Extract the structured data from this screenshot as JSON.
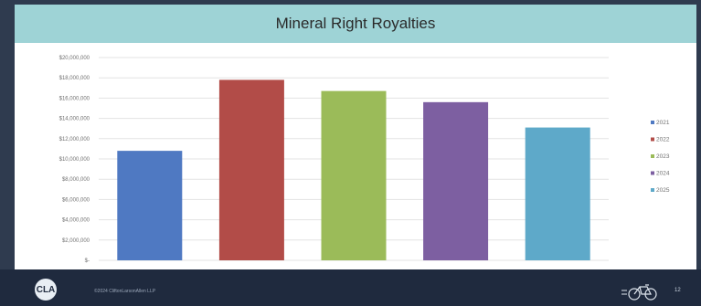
{
  "slide": {
    "title": "Mineral Right Royalties",
    "footer_text": "©2024 CliftonLarsonAllen LLP",
    "page_number": "12",
    "logo_text": "CLA"
  },
  "chart_data": {
    "type": "bar",
    "title": "",
    "xlabel": "",
    "ylabel": "",
    "y_tick_labels": [
      "$-",
      "$2,000,000",
      "$4,000,000",
      "$6,000,000",
      "$8,000,000",
      "$10,000,000",
      "$12,000,000",
      "$14,000,000",
      "$16,000,000",
      "$18,000,000",
      "$20,000,000"
    ],
    "y_ticks": [
      0,
      2000000,
      4000000,
      6000000,
      8000000,
      10000000,
      12000000,
      14000000,
      16000000,
      18000000,
      20000000
    ],
    "ylim": [
      0,
      20000000
    ],
    "grid": true,
    "legend_position": "right",
    "series": [
      {
        "name": "2021",
        "value": 10800000,
        "color": "#4f79c2"
      },
      {
        "name": "2022",
        "value": 17800000,
        "color": "#b24c48"
      },
      {
        "name": "2023",
        "value": 16700000,
        "color": "#9bbb59"
      },
      {
        "name": "2024",
        "value": 15600000,
        "color": "#7d5fa1"
      },
      {
        "name": "2025",
        "value": 13100000,
        "color": "#5ea9c9"
      }
    ]
  }
}
